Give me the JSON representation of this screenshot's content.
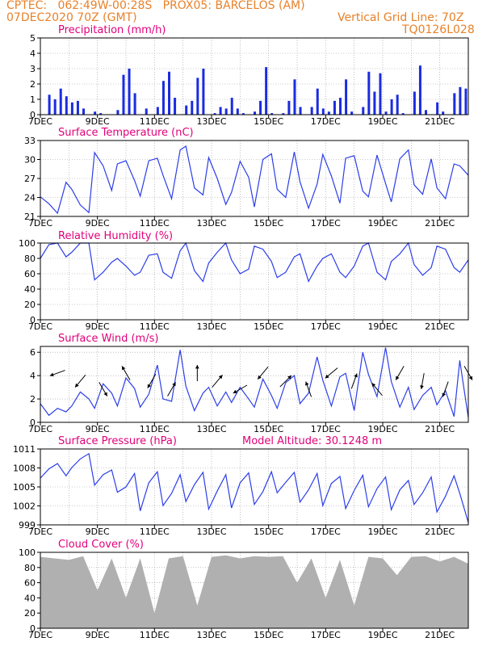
{
  "header": {
    "line1_left": "CPTEC:   062:49W-00:28S   PROX05: BARCELOS (AM)",
    "line2_left": "07DEC2020 70Z (GMT)",
    "grid_note": "Vertical Grid Line: 70Z",
    "code": "TQ0126L028"
  },
  "colors": {
    "header": "#e8812a",
    "title": "#e0007a",
    "line": "#2c3ee8",
    "bar": "#1a2ce0",
    "cloud": "#b0b0b0"
  },
  "x_tick_labels": [
    "7DEC",
    "9DEC",
    "11DEC",
    "13DEC",
    "15DEC",
    "17DEC",
    "19DEC",
    "21DEC"
  ],
  "model_altitude": "Model Altitude: 30.1248 m",
  "chart_data": [
    {
      "type": "bar",
      "title": "Precipitation (mm/h)",
      "ylim": [
        0,
        5
      ],
      "yticks": [
        "0",
        "1",
        "2",
        "3",
        "4",
        "5"
      ],
      "x": [
        0.3,
        0.5,
        0.7,
        0.9,
        1.1,
        1.3,
        1.5,
        1.7,
        1.9,
        2.1,
        2.3,
        2.5,
        2.7,
        2.9,
        3.1,
        3.3,
        3.5,
        3.7,
        3.9,
        4.1,
        4.3,
        4.5,
        4.7,
        4.9,
        5.1,
        5.3,
        5.5,
        5.7,
        5.9,
        6.1,
        6.3,
        6.5,
        6.7,
        6.9,
        7.1,
        7.3,
        7.5,
        7.7,
        7.9,
        8.1,
        8.3,
        8.5,
        8.7,
        8.9,
        9.1,
        9.3,
        9.5,
        9.7,
        9.9,
        10.1,
        10.3,
        10.5,
        10.7,
        10.9,
        11.1,
        11.3,
        11.5,
        11.7,
        11.9,
        12.1,
        12.3,
        12.5,
        12.7,
        12.9,
        13.1,
        13.3,
        13.5,
        13.7,
        13.9,
        14.1,
        14.3,
        14.5,
        14.7,
        14.9
      ],
      "values": [
        1.3,
        1.0,
        1.7,
        1.2,
        0.8,
        0.9,
        0.4,
        0,
        0.2,
        0.1,
        0,
        0,
        0.3,
        2.6,
        3.0,
        1.4,
        0,
        0.4,
        0,
        0.5,
        2.2,
        2.8,
        1.1,
        0,
        0.6,
        0.9,
        2.4,
        3.0,
        0,
        0.1,
        0.5,
        0.4,
        1.1,
        0.4,
        0.1,
        0,
        0.2,
        0.9,
        3.1,
        0.1,
        0,
        0.1,
        0.9,
        2.3,
        0.5,
        0,
        0.5,
        1.7,
        0.4,
        0.2,
        0.9,
        1.1,
        2.3,
        0.2,
        0,
        0.5,
        2.8,
        1.5,
        2.7,
        0.2,
        1.0,
        1.3,
        0.1,
        0,
        1.5,
        3.2,
        0.3,
        0,
        0.8,
        0.2,
        0,
        1.4,
        1.8,
        1.7
      ]
    },
    {
      "type": "line",
      "title": "Surface Temperature (nC)",
      "ylim": [
        21,
        33
      ],
      "yticks": [
        "21",
        "24",
        "27",
        "30",
        "33"
      ],
      "x": [
        0,
        0.3,
        0.6,
        0.9,
        1.1,
        1.4,
        1.7,
        1.9,
        2.2,
        2.5,
        2.7,
        3.0,
        3.3,
        3.5,
        3.8,
        4.1,
        4.3,
        4.6,
        4.9,
        5.1,
        5.4,
        5.7,
        5.9,
        6.2,
        6.5,
        6.7,
        7.0,
        7.3,
        7.5,
        7.8,
        8.1,
        8.3,
        8.6,
        8.9,
        9.1,
        9.4,
        9.7,
        9.9,
        10.2,
        10.5,
        10.7,
        11.0,
        11.3,
        11.5,
        11.8,
        12.1,
        12.3,
        12.6,
        12.9,
        13.1,
        13.4,
        13.7,
        13.9,
        14.2,
        14.5,
        14.7,
        15.0
      ],
      "values": [
        24.1,
        23.0,
        21.5,
        26.4,
        25.3,
        22.8,
        21.6,
        31.1,
        29.0,
        25.1,
        29.3,
        29.8,
        26.7,
        24.2,
        29.8,
        30.2,
        27.5,
        23.8,
        31.5,
        32.1,
        25.5,
        24.4,
        30.3,
        27.0,
        22.9,
        24.8,
        29.7,
        27.2,
        22.5,
        30.0,
        30.9,
        25.3,
        24.0,
        31.2,
        26.5,
        22.3,
        26.1,
        30.8,
        27.4,
        23.1,
        30.2,
        30.6,
        25.0,
        24.1,
        30.7,
        26.2,
        23.3,
        30.1,
        31.5,
        26.0,
        24.5,
        30.1,
        25.5,
        23.8,
        29.3,
        29.0,
        27.5
      ]
    },
    {
      "type": "line",
      "title": "Relative Humidity (%)",
      "ylim": [
        0,
        100
      ],
      "yticks": [
        "0",
        "20",
        "40",
        "60",
        "80",
        "100"
      ],
      "x": [
        0,
        0.3,
        0.6,
        0.9,
        1.1,
        1.4,
        1.7,
        1.9,
        2.2,
        2.5,
        2.7,
        3.0,
        3.3,
        3.5,
        3.8,
        4.1,
        4.3,
        4.6,
        4.9,
        5.1,
        5.4,
        5.7,
        5.9,
        6.2,
        6.5,
        6.7,
        7.0,
        7.3,
        7.5,
        7.8,
        8.1,
        8.3,
        8.6,
        8.9,
        9.1,
        9.4,
        9.7,
        9.9,
        10.2,
        10.5,
        10.7,
        11.0,
        11.3,
        11.5,
        11.8,
        12.1,
        12.3,
        12.6,
        12.9,
        13.1,
        13.4,
        13.7,
        13.9,
        14.2,
        14.5,
        14.7,
        15.0
      ],
      "values": [
        80,
        98,
        100,
        82,
        88,
        100,
        100,
        52,
        62,
        75,
        80,
        70,
        58,
        62,
        84,
        86,
        62,
        54,
        90,
        100,
        64,
        50,
        74,
        88,
        100,
        78,
        60,
        66,
        96,
        92,
        76,
        55,
        62,
        82,
        86,
        50,
        70,
        80,
        86,
        62,
        55,
        70,
        96,
        100,
        62,
        52,
        76,
        86,
        100,
        72,
        58,
        68,
        96,
        92,
        68,
        62,
        78
      ]
    },
    {
      "type": "line",
      "title": "Surface Wind (m/s)",
      "ylim": [
        0,
        6.5
      ],
      "yticks": [
        "0",
        "2",
        "4",
        "6"
      ],
      "x": [
        0,
        0.3,
        0.6,
        0.9,
        1.1,
        1.4,
        1.7,
        1.9,
        2.2,
        2.5,
        2.7,
        3.0,
        3.3,
        3.5,
        3.8,
        4.1,
        4.3,
        4.6,
        4.9,
        5.1,
        5.4,
        5.7,
        5.9,
        6.2,
        6.5,
        6.7,
        7.0,
        7.3,
        7.5,
        7.8,
        8.1,
        8.3,
        8.6,
        8.9,
        9.1,
        9.4,
        9.7,
        9.9,
        10.2,
        10.5,
        10.7,
        11.0,
        11.3,
        11.5,
        11.8,
        12.1,
        12.3,
        12.6,
        12.9,
        13.1,
        13.4,
        13.7,
        13.9,
        14.2,
        14.5,
        14.7,
        15.0
      ],
      "values": [
        1.6,
        0.6,
        1.2,
        0.9,
        1.4,
        2.6,
        2.0,
        1.2,
        3.3,
        2.5,
        1.4,
        3.8,
        2.9,
        1.3,
        2.4,
        4.9,
        2.0,
        1.8,
        6.2,
        3.1,
        1.0,
        2.5,
        3.0,
        1.4,
        2.6,
        1.7,
        3.0,
        2.0,
        1.3,
        3.7,
        2.3,
        1.2,
        3.4,
        4.0,
        1.6,
        2.5,
        5.6,
        3.6,
        1.4,
        3.9,
        4.2,
        1.0,
        6.0,
        4.1,
        2.2,
        6.4,
        3.5,
        1.3,
        3.0,
        1.1,
        2.3,
        3.0,
        1.5,
        2.7,
        0.5,
        5.3,
        0.4
      ],
      "arrow_days": [
        0.6,
        1.4,
        2.2,
        3.0,
        3.9,
        4.6,
        5.5,
        6.2,
        7.0,
        7.8,
        8.6,
        9.4,
        10.2,
        11.0,
        11.8,
        12.6,
        13.4,
        14.2,
        15.0
      ],
      "arrow_angles_deg": [
        200,
        230,
        300,
        120,
        240,
        60,
        90,
        50,
        210,
        230,
        45,
        110,
        220,
        70,
        130,
        240,
        260,
        250,
        300
      ]
    },
    {
      "type": "line",
      "title": "Surface Pressure (hPa)",
      "ylim": [
        999,
        1012
      ],
      "yticks": [
        "999",
        "1002",
        "1005",
        "1008",
        "1011"
      ],
      "x": [
        0,
        0.3,
        0.6,
        0.9,
        1.1,
        1.4,
        1.7,
        1.9,
        2.2,
        2.5,
        2.7,
        3.0,
        3.3,
        3.5,
        3.8,
        4.1,
        4.3,
        4.6,
        4.9,
        5.1,
        5.4,
        5.7,
        5.9,
        6.2,
        6.5,
        6.7,
        7.0,
        7.3,
        7.5,
        7.8,
        8.1,
        8.3,
        8.6,
        8.9,
        9.1,
        9.4,
        9.7,
        9.9,
        10.2,
        10.5,
        10.7,
        11.0,
        11.3,
        11.5,
        11.8,
        12.1,
        12.3,
        12.6,
        12.9,
        13.1,
        13.4,
        13.7,
        13.9,
        14.2,
        14.5,
        14.7,
        15.0
      ],
      "values": [
        1007.0,
        1008.6,
        1009.5,
        1007.4,
        1008.8,
        1010.3,
        1011.2,
        1005.8,
        1007.6,
        1008.4,
        1004.6,
        1005.5,
        1007.8,
        1001.4,
        1006.2,
        1008.1,
        1002.3,
        1004.4,
        1007.6,
        1003.0,
        1005.9,
        1008.0,
        1001.7,
        1004.8,
        1007.6,
        1001.9,
        1006.2,
        1007.9,
        1002.5,
        1004.7,
        1008.1,
        1004.5,
        1006.3,
        1008.0,
        1002.9,
        1005.0,
        1007.8,
        1002.3,
        1006.1,
        1007.3,
        1001.8,
        1004.9,
        1007.5,
        1002.1,
        1005.2,
        1007.2,
        1001.6,
        1005.0,
        1006.6,
        1002.5,
        1004.5,
        1007.2,
        1001.2,
        1003.9,
        1007.4,
        1004.4,
        999.4
      ]
    },
    {
      "type": "area",
      "title": "Cloud Cover (%)",
      "ylim": [
        0,
        100
      ],
      "yticks": [
        "0",
        "20",
        "40",
        "60",
        "80",
        "100"
      ],
      "x": [
        0,
        0.5,
        1.0,
        1.5,
        2.0,
        2.5,
        3.0,
        3.5,
        4.0,
        4.5,
        5.0,
        5.5,
        6.0,
        6.5,
        7.0,
        7.5,
        8.0,
        8.5,
        9.0,
        9.5,
        10.0,
        10.5,
        11.0,
        11.5,
        12.0,
        12.5,
        13.0,
        13.5,
        14.0,
        14.5,
        15.0
      ],
      "values": [
        94,
        92,
        90,
        95,
        50,
        92,
        40,
        92,
        20,
        92,
        95,
        30,
        94,
        96,
        92,
        95,
        94,
        95,
        60,
        92,
        40,
        90,
        30,
        94,
        92,
        70,
        94,
        95,
        88,
        94,
        85
      ]
    }
  ]
}
